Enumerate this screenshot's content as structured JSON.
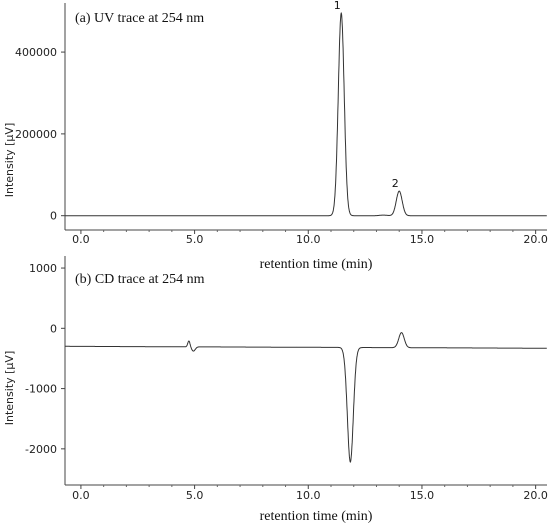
{
  "chart_data": [
    {
      "type": "line",
      "title": "(a) UV trace at 254 nm",
      "xlabel": "retention time (min)",
      "ylabel": "Intensity [µV]",
      "xlim": [
        -0.7,
        20.5
      ],
      "ylim": [
        -35000,
        520000
      ],
      "xticks": [
        "0.0",
        "5.0",
        "10.0",
        "15.0",
        "20.0"
      ],
      "xtick_values": [
        0,
        5,
        10,
        15,
        20
      ],
      "yticks": [
        "0",
        "200000",
        "400000"
      ],
      "ytick_values": [
        0,
        200000,
        400000
      ],
      "baseline": 0,
      "peaks": [
        {
          "label": "1",
          "x": 11.45,
          "y": 495000,
          "sigma": 0.13
        },
        {
          "label": "2",
          "x": 14.0,
          "y": 60000,
          "sigma": 0.13
        }
      ],
      "series": [
        {
          "values": [
            [
              -0.7,
              0
            ],
            [
              10.9,
              0
            ],
            [
              11.1,
              50000
            ],
            [
              11.3,
              330000
            ],
            [
              11.45,
              495000
            ],
            [
              11.6,
              330000
            ],
            [
              11.8,
              50000
            ],
            [
              12.0,
              0
            ],
            [
              13.6,
              2000
            ],
            [
              13.8,
              25000
            ],
            [
              14.0,
              60000
            ],
            [
              14.2,
              25000
            ],
            [
              14.4,
              2000
            ],
            [
              20.5,
              0
            ]
          ]
        }
      ],
      "grid": false
    },
    {
      "type": "line",
      "title": "(b) CD trace at 254 nm",
      "xlabel": "retention time (min)",
      "ylabel": "Intensity [µV]",
      "xlim": [
        -0.7,
        20.5
      ],
      "ylim": [
        -2600,
        1200
      ],
      "xticks": [
        "0.0",
        "5.0",
        "10.0",
        "15.0",
        "20.0"
      ],
      "xtick_values": [
        0,
        5,
        10,
        15,
        20
      ],
      "yticks": [
        "1000",
        "0",
        "-1000",
        "-2000"
      ],
      "ytick_values": [
        1000,
        0,
        -1000,
        -2000
      ],
      "baseline": -300,
      "features": [
        {
          "x": 4.75,
          "y": -200
        },
        {
          "x": 4.95,
          "y": -370
        },
        {
          "x": 11.85,
          "y": -2200
        },
        {
          "x": 14.1,
          "y": -50
        }
      ],
      "series": [
        {
          "values": [
            [
              -0.7,
              -300
            ],
            [
              4.6,
              -300
            ],
            [
              4.75,
              -200
            ],
            [
              4.85,
              -310
            ],
            [
              4.95,
              -370
            ],
            [
              5.2,
              -320
            ],
            [
              11.3,
              -330
            ],
            [
              11.6,
              -600
            ],
            [
              11.85,
              -2200
            ],
            [
              12.1,
              -600
            ],
            [
              12.4,
              -320
            ],
            [
              13.8,
              -300
            ],
            [
              14.1,
              -50
            ],
            [
              14.4,
              -300
            ],
            [
              20.5,
              -330
            ]
          ]
        }
      ],
      "grid": false
    }
  ]
}
